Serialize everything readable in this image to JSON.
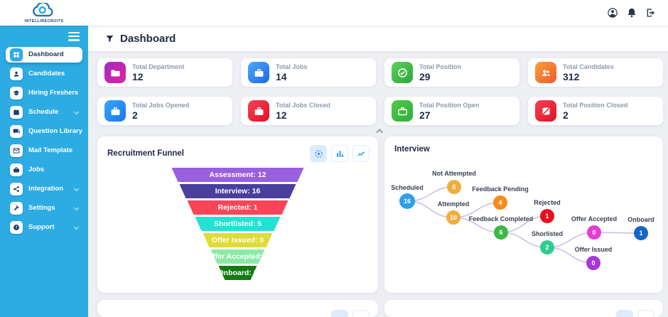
{
  "brand": {
    "name": "INTELLIRECRUITS",
    "logo_icon": "cloud-logo-icon"
  },
  "topbar": {
    "icons": [
      "account-icon",
      "notifications-icon",
      "logout-icon"
    ]
  },
  "page": {
    "title": "Dashboard",
    "title_icon": "filter-funnel-icon"
  },
  "sidebar": {
    "items": [
      {
        "label": "Dashboard",
        "active": true,
        "has_submenu": false
      },
      {
        "label": "Candidates",
        "active": false,
        "has_submenu": false
      },
      {
        "label": "Hiring Freshers",
        "active": false,
        "has_submenu": false
      },
      {
        "label": "Schedule",
        "active": false,
        "has_submenu": true
      },
      {
        "label": "Question Library",
        "active": false,
        "has_submenu": false
      },
      {
        "label": "Mail Template",
        "active": false,
        "has_submenu": false
      },
      {
        "label": "Jobs",
        "active": false,
        "has_submenu": false
      },
      {
        "label": "Integration",
        "active": false,
        "has_submenu": true
      },
      {
        "label": "Settings",
        "active": false,
        "has_submenu": true
      },
      {
        "label": "Support",
        "active": false,
        "has_submenu": true
      }
    ]
  },
  "stat_cards": [
    {
      "label": "Total Department",
      "value": "12",
      "icon": "folder-icon",
      "gradient": [
        "#a32cc4",
        "#e0219c"
      ]
    },
    {
      "label": "Total Jobs",
      "value": "14",
      "icon": "briefcase-icon",
      "gradient": [
        "#4aa8f8",
        "#1d6ae5"
      ]
    },
    {
      "label": "Total Position",
      "value": "29",
      "icon": "check-circle-icon",
      "gradient": [
        "#5ecf5a",
        "#2aa83c"
      ]
    },
    {
      "label": "Total Candidates",
      "value": "312",
      "icon": "users-icon",
      "gradient": [
        "#f9a13a",
        "#f2572c"
      ]
    },
    {
      "label": "Total Jobs Opened",
      "value": "2",
      "icon": "briefcase-icon",
      "gradient": [
        "#38a6f8",
        "#1976f2"
      ]
    },
    {
      "label": "Total Jobs Closed",
      "value": "12",
      "icon": "briefcase-icon",
      "gradient": [
        "#f44155",
        "#e31226"
      ]
    },
    {
      "label": "Total Position Open",
      "value": "27",
      "icon": "briefcase-outline-icon",
      "gradient": [
        "#52c948",
        "#2fae3e"
      ]
    },
    {
      "label": "Total Position Closed",
      "value": "2",
      "icon": "block-icon",
      "gradient": [
        "#f44155",
        "#e31226"
      ]
    }
  ],
  "panels": {
    "funnel_title": "Recruitment Funnel",
    "interview_title": "Interview",
    "funnel_view_icons": [
      "funnel-view-icon",
      "bar-chart-icon",
      "line-chart-icon"
    ]
  },
  "chart_data": [
    {
      "type": "funnel",
      "title": "Recruitment Funnel",
      "stages": [
        {
          "label": "Assessment",
          "value": 12,
          "color": "#9a5fde"
        },
        {
          "label": "Interview",
          "value": 16,
          "color": "#4a3f9c"
        },
        {
          "label": "Rejected",
          "value": 1,
          "color": "#fb4458"
        },
        {
          "label": "Shortlisted",
          "value": 5,
          "color": "#25e1d2"
        },
        {
          "label": "Offer Issued",
          "value": 0,
          "color": "#dedc38"
        },
        {
          "label": "Offer Accepted",
          "value": 0,
          "color": "#8beba5"
        },
        {
          "label": "Onboard",
          "value": 1,
          "color": "#127c12"
        }
      ]
    },
    {
      "type": "node-graph",
      "title": "Interview",
      "nodes": [
        {
          "id": "scheduled",
          "label": "Scheduled",
          "value": 16,
          "color": "#2e9fe6"
        },
        {
          "id": "not_attempted",
          "label": "Not Attempted",
          "value": 6,
          "color": "#f0ad3e"
        },
        {
          "id": "attempted",
          "label": "Attempted",
          "value": 10,
          "color": "#f0ad3e"
        },
        {
          "id": "feedback_pending",
          "label": "Feedback Pending",
          "value": 4,
          "color": "#f68b1f"
        },
        {
          "id": "feedback_completed",
          "label": "Feedback Completed",
          "value": 6,
          "color": "#3cb844"
        },
        {
          "id": "rejected",
          "label": "Rejected",
          "value": 1,
          "color": "#e8101f"
        },
        {
          "id": "shorlisted",
          "label": "Shorlisted",
          "value": 2,
          "color": "#2ecc8e"
        },
        {
          "id": "offer_accepted",
          "label": "Offer Accepted",
          "value": 0,
          "color": "#e23ed4"
        },
        {
          "id": "onboard",
          "label": "Onboard",
          "value": 1,
          "color": "#1565c8"
        },
        {
          "id": "offer_issued",
          "label": "Offer Issued",
          "value": 0,
          "color": "#a637d8"
        }
      ],
      "edges": [
        [
          "scheduled",
          "not_attempted"
        ],
        [
          "scheduled",
          "attempted"
        ],
        [
          "attempted",
          "feedback_pending"
        ],
        [
          "attempted",
          "feedback_completed"
        ],
        [
          "feedback_completed",
          "rejected"
        ],
        [
          "feedback_completed",
          "shorlisted"
        ],
        [
          "shorlisted",
          "offer_accepted"
        ],
        [
          "shorlisted",
          "offer_issued"
        ],
        [
          "offer_accepted",
          "onboard"
        ]
      ],
      "edge_color": "#c9bce6"
    }
  ]
}
